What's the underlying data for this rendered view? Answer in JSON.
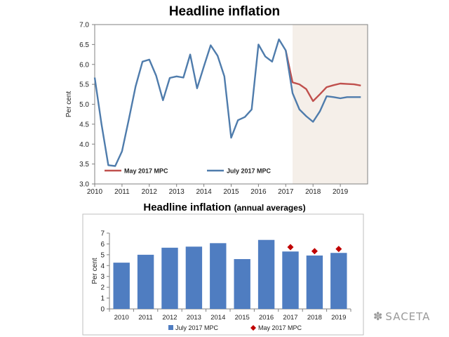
{
  "watermark": {
    "text": "SACETA",
    "icon": "wechat-icon"
  },
  "chart_data": [
    {
      "type": "line",
      "title": "Headline inflation",
      "ylabel": "Per cent",
      "xlabel": "",
      "ylim": [
        3.0,
        7.0
      ],
      "xlim": [
        2010,
        2020
      ],
      "yticks": [
        "3.0",
        "3.5",
        "4.0",
        "4.5",
        "5.0",
        "5.5",
        "6.0",
        "6.5",
        "7.0"
      ],
      "xticks": [
        "2010",
        "2011",
        "2012",
        "2013",
        "2014",
        "2015",
        "2016",
        "2017",
        "2018",
        "2019"
      ],
      "forecast_shade": {
        "from": 2017.25,
        "to": 2020,
        "color": "#f5efe9"
      },
      "legend": {
        "position": "bottom-left"
      },
      "series": [
        {
          "name": "May 2017  MPC",
          "color": "#c0504d",
          "points": [
            [
              2017.0,
              6.35
            ],
            [
              2017.25,
              5.55
            ],
            [
              2017.5,
              5.5
            ],
            [
              2017.75,
              5.38
            ],
            [
              2018.0,
              5.08
            ],
            [
              2018.25,
              5.25
            ],
            [
              2018.5,
              5.43
            ],
            [
              2018.75,
              5.48
            ],
            [
              2019.0,
              5.52
            ],
            [
              2019.25,
              5.51
            ],
            [
              2019.5,
              5.5
            ],
            [
              2019.75,
              5.47
            ]
          ]
        },
        {
          "name": "July 2017  MPC",
          "color": "#4f7cac",
          "points": [
            [
              2010.0,
              5.67
            ],
            [
              2010.25,
              4.5
            ],
            [
              2010.5,
              3.47
            ],
            [
              2010.75,
              3.45
            ],
            [
              2011.0,
              3.82
            ],
            [
              2011.25,
              4.62
            ],
            [
              2011.5,
              5.45
            ],
            [
              2011.75,
              6.07
            ],
            [
              2012.0,
              6.12
            ],
            [
              2012.25,
              5.72
            ],
            [
              2012.5,
              5.1
            ],
            [
              2012.75,
              5.66
            ],
            [
              2013.0,
              5.7
            ],
            [
              2013.25,
              5.67
            ],
            [
              2013.5,
              6.25
            ],
            [
              2013.75,
              5.4
            ],
            [
              2014.0,
              5.95
            ],
            [
              2014.25,
              6.48
            ],
            [
              2014.5,
              6.22
            ],
            [
              2014.75,
              5.7
            ],
            [
              2015.0,
              4.16
            ],
            [
              2015.25,
              4.6
            ],
            [
              2015.5,
              4.68
            ],
            [
              2015.75,
              4.87
            ],
            [
              2016.0,
              6.5
            ],
            [
              2016.25,
              6.2
            ],
            [
              2016.5,
              6.07
            ],
            [
              2016.75,
              6.63
            ],
            [
              2017.0,
              6.35
            ],
            [
              2017.25,
              5.28
            ],
            [
              2017.5,
              4.87
            ],
            [
              2017.75,
              4.7
            ],
            [
              2018.0,
              4.56
            ],
            [
              2018.25,
              4.82
            ],
            [
              2018.5,
              5.2
            ],
            [
              2018.75,
              5.18
            ],
            [
              2019.0,
              5.15
            ],
            [
              2019.25,
              5.18
            ],
            [
              2019.5,
              5.18
            ],
            [
              2019.75,
              5.18
            ]
          ]
        }
      ]
    },
    {
      "type": "bar",
      "title": "Headline inflation",
      "subtitle": "(annual averages)",
      "ylabel": "Per cent",
      "xlabel": "",
      "ylim": [
        0,
        7
      ],
      "yticks": [
        "0",
        "1",
        "2",
        "3",
        "4",
        "5",
        "6",
        "7"
      ],
      "categories": [
        "2010",
        "2011",
        "2012",
        "2013",
        "2014",
        "2015",
        "2016",
        "2017",
        "2018",
        "2019"
      ],
      "legend": {
        "position": "bottom-center"
      },
      "series": [
        {
          "name": "July 2017  MPC",
          "marker": "bar",
          "color": "#4f7dc1",
          "values": [
            4.27,
            5.0,
            5.65,
            5.75,
            6.07,
            4.6,
            6.37,
            5.3,
            4.93,
            5.17
          ]
        },
        {
          "name": "May 2017  MPC",
          "marker": "diamond",
          "color": "#c00000",
          "values": [
            null,
            null,
            null,
            null,
            null,
            null,
            null,
            5.7,
            5.33,
            5.53
          ]
        }
      ]
    }
  ]
}
